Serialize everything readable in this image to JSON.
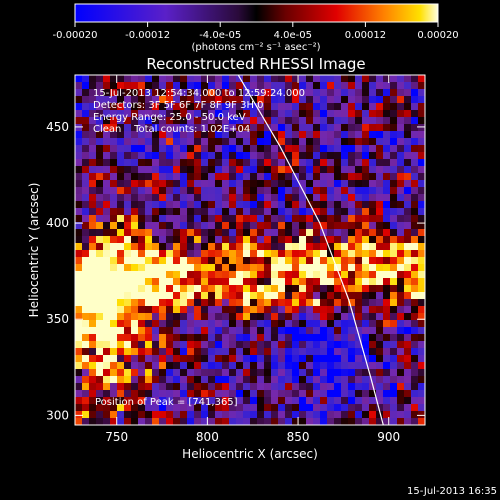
{
  "chart_data": {
    "type": "heatmap",
    "title": "Reconstructed RHESSI Image",
    "xlabel": "Heliocentric X (arcsec)",
    "ylabel": "Heliocentric Y (arcsec)",
    "xlim": [
      727,
      920
    ],
    "ylim": [
      295,
      477
    ],
    "xticks": [
      750,
      800,
      850,
      900
    ],
    "yticks": [
      300,
      350,
      400,
      450
    ],
    "colorbar": {
      "vmin": -0.0002,
      "vmax": 0.0002,
      "tick_values": [
        -0.0002,
        -0.00012,
        -4e-05,
        4e-05,
        0.00012,
        0.0002
      ],
      "tick_labels": [
        "-0.00020",
        "-0.00012",
        "-4.0e-05",
        "4.0e-05",
        "0.00012",
        "0.00020"
      ],
      "unit_label": "(photons cm⁻² s⁻¹ asec⁻²)"
    },
    "annotations": [
      "15-Jul-2013 12:54:34.000 to 12:59:24.000",
      "Detectors: 3F 5F 6F 7F 8F 9F 3H 0",
      "Energy Range: 25.0 - 50.0 keV",
      "Clean    Total counts: 1.02E+04"
    ],
    "peak_label": "Position of Peak = [741,365]",
    "peak": [
      741,
      365
    ],
    "limb_curve": [
      [
        817,
        477
      ],
      [
        840,
        440
      ],
      [
        862,
        400
      ],
      [
        878,
        360
      ],
      [
        890,
        320
      ],
      [
        897,
        295
      ]
    ],
    "grid": false
  },
  "footer_timestamp": "15-Jul-2013 16:35"
}
